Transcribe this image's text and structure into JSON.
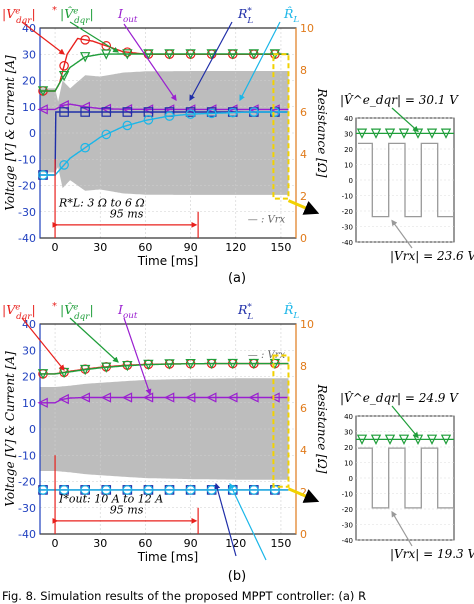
{
  "caption": "Fig. 8. Simulation results of the proposed MPPT controller: (a) R",
  "chart_data": [
    {
      "type": "line",
      "panel": "(a)",
      "xlabel": "Time [ms]",
      "ylabel": "Voltage [V] & Current [A]",
      "y2label": "Resistance [Ω]",
      "xlim": [
        -10,
        160
      ],
      "ylim": [
        -40,
        40
      ],
      "y2lim": [
        0,
        10
      ],
      "xticks": [
        "0",
        "30",
        "60",
        "90",
        "120",
        "150"
      ],
      "yticks": [
        "-40",
        "-30",
        "-20",
        "-10",
        "0",
        "10",
        "20",
        "30",
        "40"
      ],
      "y2ticks": [
        "0",
        "2",
        "4",
        "6",
        "8",
        "10"
      ],
      "grid": true,
      "event_label": "R*L: 3 Ω to 6 Ω",
      "duration_label": "95 ms",
      "envelope_label": "— : Vrx",
      "series_labels": [
        "|V^e_dqr|*",
        "|V̂^e_dqr|",
        "I_out",
        "R*L",
        "R̂L"
      ],
      "series": [
        {
          "name": "|V^e_dqr|*",
          "axis": "left",
          "color": "#e8201c",
          "marker": "circle",
          "x": [
            -10,
            0,
            3,
            8,
            15,
            25,
            35,
            45,
            60,
            80,
            100,
            120,
            140,
            155
          ],
          "values": [
            16,
            16,
            19,
            30,
            36,
            35,
            33,
            31,
            30,
            30,
            30,
            30,
            30,
            30
          ]
        },
        {
          "name": "|V̂^e_dqr|",
          "axis": "left",
          "color": "#1f9e3a",
          "marker": "triangle",
          "x": [
            -10,
            0,
            5,
            10,
            20,
            30,
            45,
            60,
            80,
            100,
            120,
            140,
            155
          ],
          "values": [
            16,
            16,
            21,
            25,
            29,
            30,
            30.1,
            30.1,
            30.1,
            30.1,
            30.1,
            30.1,
            30.1
          ]
        },
        {
          "name": "I_out",
          "axis": "left",
          "color": "#9a1fd0",
          "marker": "triangle-left",
          "x": [
            -10,
            0,
            5,
            10,
            20,
            30,
            40,
            60,
            80,
            100,
            120,
            140,
            155
          ],
          "values": [
            9,
            9,
            10.5,
            11,
            10,
            9.3,
            9.1,
            9,
            9,
            9,
            9,
            9,
            9
          ]
        },
        {
          "name": "R*L",
          "axis": "right",
          "color": "#1f2ea8",
          "marker": "square",
          "x": [
            -10,
            0,
            0.01,
            160
          ],
          "values": [
            3,
            3,
            6,
            6
          ]
        },
        {
          "name": "R̂L",
          "axis": "right",
          "color": "#1ab6e8",
          "marker": "circle",
          "x": [
            -10,
            0,
            10,
            20,
            30,
            45,
            60,
            75,
            90,
            110,
            130,
            150,
            155
          ],
          "values": [
            3,
            3,
            3.8,
            4.3,
            4.8,
            5.3,
            5.6,
            5.8,
            5.9,
            5.95,
            6,
            6,
            6
          ]
        }
      ],
      "envelope": {
        "name": "Vrx",
        "color": "#bdbdbd",
        "x": [
          -10,
          0,
          2,
          5,
          10,
          20,
          30,
          45,
          60,
          90,
          120,
          155
        ],
        "upper": [
          17,
          17,
          12,
          20,
          17,
          22,
          21.5,
          23,
          23.5,
          23.6,
          23.6,
          23.6
        ],
        "lower": [
          -15,
          -15,
          -13,
          -21,
          -18,
          -22,
          -21.5,
          -23,
          -23.5,
          -23.6,
          -23.6,
          -23.6
        ]
      },
      "inset": {
        "ylim": [
          -40,
          40
        ],
        "yticks": [
          "40",
          "30",
          "20",
          "10",
          "0",
          "-10",
          "-20",
          "-30",
          "-40"
        ],
        "estimate_label": "|V̂^e_dqr| = 30.1 V",
        "estimate_value": 30.1,
        "square_amplitude": 23.6,
        "amplitude_label": "|Vrx| = 23.6 V"
      }
    },
    {
      "type": "line",
      "panel": "(b)",
      "xlabel": "Time [ms]",
      "ylabel": "Voltage [V] & Current [A]",
      "y2label": "Resistance [Ω]",
      "xlim": [
        -10,
        160
      ],
      "ylim": [
        -40,
        40
      ],
      "y2lim": [
        0,
        10
      ],
      "xticks": [
        "0",
        "30",
        "60",
        "90",
        "120",
        "150"
      ],
      "yticks": [
        "-40",
        "-30",
        "-20",
        "-10",
        "0",
        "10",
        "20",
        "30",
        "40"
      ],
      "y2ticks": [
        "0",
        "2",
        "4",
        "6",
        "8",
        "10"
      ],
      "grid": true,
      "event_label": "I*out: 10 A to 12 A",
      "duration_label": "95 ms",
      "envelope_label": "— : Vrx",
      "series_labels": [
        "|V^e_dqr|*",
        "|V̂^e_dqr|",
        "I_out",
        "R*L",
        "R̂L"
      ],
      "series": [
        {
          "name": "|V^e_dqr|*",
          "axis": "left",
          "color": "#e8201c",
          "marker": "circle",
          "x": [
            -10,
            0,
            10,
            20,
            30,
            45,
            60,
            80,
            100,
            120,
            140,
            155
          ],
          "values": [
            21,
            21,
            22,
            22.8,
            23.5,
            24.2,
            24.6,
            24.8,
            24.9,
            24.9,
            24.9,
            24.9
          ]
        },
        {
          "name": "|V̂^e_dqr|",
          "axis": "left",
          "color": "#1f9e3a",
          "marker": "triangle",
          "x": [
            -10,
            0,
            10,
            20,
            30,
            45,
            60,
            80,
            100,
            120,
            140,
            155
          ],
          "values": [
            21,
            21,
            21.8,
            22.6,
            23.3,
            24,
            24.5,
            24.8,
            24.9,
            24.9,
            24.9,
            24.9
          ]
        },
        {
          "name": "I_out",
          "axis": "left",
          "color": "#9a1fd0",
          "marker": "triangle-left",
          "x": [
            -10,
            0,
            4,
            10,
            20,
            40,
            60,
            100,
            155
          ],
          "values": [
            10,
            10,
            11.2,
            11.8,
            12,
            12,
            12,
            12,
            12
          ]
        },
        {
          "name": "R*L",
          "axis": "right",
          "color": "#1f2ea8",
          "marker": "square",
          "x": [
            -10,
            160
          ],
          "values": [
            2.1,
            2.1
          ]
        },
        {
          "name": "R̂L",
          "axis": "right",
          "color": "#1ab6e8",
          "marker": "circle",
          "x": [
            -10,
            0,
            10,
            30,
            60,
            100,
            155
          ],
          "values": [
            2.1,
            2.1,
            2.1,
            2.1,
            2.1,
            2.1,
            2.1
          ]
        }
      ],
      "envelope": {
        "name": "Vrx",
        "color": "#bdbdbd",
        "x": [
          -10,
          0,
          10,
          20,
          40,
          60,
          90,
          120,
          155
        ],
        "upper": [
          16,
          16,
          16.5,
          17.2,
          18,
          18.7,
          19.1,
          19.3,
          19.3
        ],
        "lower": [
          -16,
          -16,
          -16.5,
          -17.2,
          -18,
          -18.7,
          -19.1,
          -19.3,
          -19.3
        ]
      },
      "inset": {
        "ylim": [
          -40,
          40
        ],
        "yticks": [
          "40",
          "30",
          "20",
          "10",
          "0",
          "-10",
          "-20",
          "-30",
          "-40"
        ],
        "estimate_label": "|V̂^e_dqr| = 24.9 V",
        "estimate_value": 24.9,
        "square_amplitude": 19.3,
        "amplitude_label": "|Vrx| = 19.3 V"
      }
    }
  ]
}
